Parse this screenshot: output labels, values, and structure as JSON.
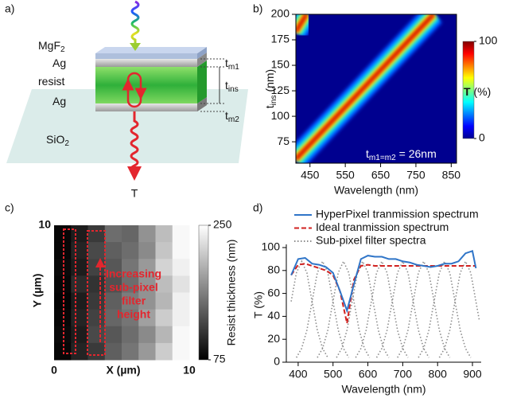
{
  "panel_labels": [
    "a)",
    "b)",
    "c)",
    "d)"
  ],
  "diagram": {
    "layers": [
      {
        "label": "MgF",
        "sub": "2"
      },
      {
        "label": "Ag"
      },
      {
        "label": "resist"
      },
      {
        "label": "Ag"
      },
      {
        "label": "SiO",
        "sub": "2"
      }
    ],
    "thickness_labels": [
      {
        "label": "t",
        "sub": "m1"
      },
      {
        "label": "t",
        "sub": "ins"
      },
      {
        "label": "t",
        "sub": "m2"
      }
    ],
    "output_label": "T"
  },
  "chart_data": [
    {
      "type": "heatmap-bands",
      "xlabel": "Wavelength (nm)",
      "ylabel": {
        "label": "t",
        "sub": "ins",
        "rest": " (nm)"
      },
      "xlim": [
        410,
        865
      ],
      "xticks": [
        450,
        550,
        650,
        750,
        850
      ],
      "ylim": [
        54,
        200
      ],
      "yticks": [
        75,
        100,
        125,
        150,
        175,
        200
      ],
      "colormap": "jet",
      "bands": [
        {
          "x": [
            410,
            800
          ],
          "y": [
            58,
            200
          ]
        },
        {
          "x": [
            410,
            440
          ],
          "y": [
            183,
            200
          ]
        }
      ],
      "colorbar": {
        "label": {
          "label": "T",
          "rest": " (%)"
        },
        "clim": [
          0,
          100
        ],
        "ticks": [
          0,
          100
        ]
      },
      "annotation": {
        "label": "t",
        "sub": "m1=m2",
        "rest": " = 26nm"
      }
    },
    {
      "type": "image",
      "xlabel": "X (µm)",
      "ylabel": "Y (µm)",
      "xlim": [
        0,
        10
      ],
      "xticks": [
        0,
        10
      ],
      "ylim": [
        0,
        10
      ],
      "yticks": [
        10
      ],
      "colormap": "gray",
      "values": [
        [
          80,
          95,
          115,
          150,
          145,
          175,
          205,
          245
        ],
        [
          80,
          100,
          125,
          140,
          150,
          170,
          210,
          245
        ],
        [
          82,
          95,
          120,
          135,
          155,
          180,
          220,
          240
        ],
        [
          80,
          105,
          110,
          130,
          150,
          175,
          205,
          230
        ],
        [
          78,
          95,
          115,
          140,
          160,
          175,
          200,
          240
        ],
        [
          80,
          100,
          120,
          145,
          155,
          185,
          215,
          240
        ],
        [
          82,
          95,
          125,
          135,
          150,
          170,
          200,
          245
        ],
        [
          80,
          100,
          115,
          140,
          155,
          180,
          215,
          245
        ]
      ],
      "colorbar": {
        "label": "Resist thickness (nm)",
        "clim": [
          75,
          250
        ],
        "ticks": [
          75,
          250
        ]
      },
      "annotation": [
        "Increasing",
        "sub-pixel",
        "filter",
        "height"
      ],
      "annotation_color": "#e3262e"
    },
    {
      "type": "line",
      "xlabel": "Wavelength (nm)",
      "ylabel": "T (%)",
      "xlim": [
        366,
        925
      ],
      "xticks": [
        400,
        500,
        600,
        700,
        800,
        900
      ],
      "ylim": [
        0,
        100
      ],
      "yticks": [
        0,
        20,
        40,
        60,
        80,
        100
      ],
      "series": [
        {
          "name": "HyperPixel tranmission spectrum",
          "color": "#2f75c8",
          "dash": "solid",
          "x": [
            380,
            400,
            420,
            440,
            460,
            480,
            500,
            520,
            540,
            560,
            580,
            600,
            620,
            640,
            660,
            680,
            700,
            720,
            740,
            760,
            780,
            800,
            820,
            840,
            860,
            880,
            900,
            910
          ],
          "values": [
            76,
            90,
            91,
            86,
            85,
            83,
            78,
            62,
            45,
            68,
            90,
            93,
            92,
            92,
            90,
            90,
            88,
            87,
            85,
            84,
            83,
            84,
            86,
            86,
            88,
            95,
            97,
            82
          ]
        },
        {
          "name": "Ideal tranmission spectrum",
          "color": "#d0211f",
          "dash": "dashed",
          "x": [
            380,
            400,
            420,
            440,
            460,
            480,
            500,
            520,
            540,
            560,
            580,
            600,
            620,
            640,
            660,
            680,
            700,
            720,
            740,
            760,
            780,
            800,
            820,
            840,
            860,
            880,
            900,
            910
          ],
          "values": [
            76,
            85,
            86,
            84,
            82,
            80,
            76,
            62,
            34,
            72,
            84,
            85,
            84,
            84,
            84,
            84,
            84,
            84,
            84,
            84,
            84,
            84,
            84,
            84,
            84,
            84,
            84,
            84
          ]
        },
        {
          "name": "Sub-pixel filter spectra",
          "color": "#8c8c8c",
          "dash": "dotted",
          "x": [
            380,
            395,
            410,
            425,
            440,
            455,
            470,
            485,
            null,
            395,
            410,
            425,
            440,
            455,
            470,
            485,
            500,
            515,
            530,
            545,
            null,
            455,
            470,
            485,
            500,
            515,
            530,
            545,
            560,
            575,
            590,
            605,
            null,
            510,
            525,
            540,
            555,
            570,
            585,
            600,
            615,
            630,
            645,
            660,
            null,
            565,
            580,
            595,
            610,
            625,
            640,
            655,
            670,
            685,
            700,
            715,
            null,
            625,
            640,
            655,
            670,
            685,
            700,
            715,
            730,
            745,
            760,
            775,
            null,
            685,
            700,
            715,
            730,
            745,
            760,
            775,
            790,
            805,
            820,
            835,
            null,
            745,
            760,
            775,
            790,
            805,
            820,
            835,
            850,
            865,
            880,
            895,
            null,
            805,
            820,
            835,
            850,
            865,
            880,
            895,
            910,
            920
          ],
          "values": [
            53,
            78,
            88,
            78,
            53,
            28,
            12,
            4,
            null,
            4,
            12,
            28,
            53,
            78,
            88,
            78,
            53,
            28,
            12,
            4,
            null,
            4,
            12,
            28,
            53,
            78,
            88,
            78,
            53,
            28,
            12,
            4,
            null,
            4,
            12,
            28,
            53,
            78,
            88,
            78,
            53,
            28,
            12,
            4,
            null,
            4,
            12,
            28,
            53,
            78,
            88,
            78,
            53,
            28,
            12,
            4,
            null,
            4,
            12,
            28,
            53,
            78,
            88,
            78,
            53,
            28,
            12,
            4,
            null,
            4,
            12,
            28,
            53,
            78,
            88,
            78,
            53,
            28,
            12,
            4,
            null,
            4,
            12,
            28,
            53,
            78,
            88,
            78,
            53,
            28,
            12,
            4,
            null,
            4,
            12,
            28,
            53,
            78,
            88,
            78,
            53,
            36
          ]
        }
      ]
    }
  ]
}
